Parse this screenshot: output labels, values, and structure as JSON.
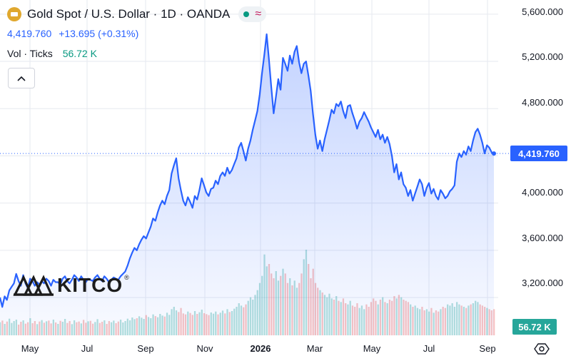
{
  "header": {
    "title": "Gold Spot / U.S. Dollar · 1D · OANDA",
    "price": "4,419.760",
    "change": "+13.695 (+0.31%)",
    "volume_label": "Vol · Ticks",
    "volume_value": "56.72 K",
    "status_icons": [
      "market-open-dot",
      "wave-icon"
    ]
  },
  "logo": {
    "text": "KITCO",
    "mark": "®"
  },
  "price_label": "4,419.760",
  "volume_axis_label": "56.72 K",
  "y_ticks": [
    "5,600.000",
    "5,200.000",
    "4,800.000",
    "4,000.000",
    "3,600.000",
    "3,200.000"
  ],
  "x_ticks": [
    "May",
    "Jul",
    "Sep",
    "Nov",
    "2026",
    "Mar",
    "May",
    "Jul",
    "Sep"
  ],
  "colors": {
    "line": "#2962ff",
    "area": "#2962ff",
    "price_label": "#2962ff",
    "volume_up": "#26a69a",
    "volume_down": "#ef5350",
    "grid": "#e6e9ef"
  },
  "chart_data": {
    "type": "area",
    "series": [
      {
        "values": [
          3200,
          3120,
          3210,
          3180,
          3260,
          3290,
          3320,
          3400,
          3340,
          3300,
          3390,
          3320,
          3280,
          3360,
          3340,
          3300,
          3330,
          3310,
          3340,
          3320,
          3360,
          3340,
          3300,
          3350,
          3330,
          3330,
          3310,
          3360,
          3380,
          3340,
          3320,
          3350,
          3390,
          3370,
          3340,
          3380,
          3350,
          3330,
          3360,
          3350,
          3340,
          3370,
          3390,
          3360,
          3340,
          3380,
          3360,
          3330,
          3350,
          3370,
          3360,
          3350,
          3380,
          3400,
          3420,
          3470,
          3530,
          3580,
          3620,
          3600,
          3650,
          3690,
          3720,
          3700,
          3750,
          3800,
          3870,
          3850,
          3920,
          3980,
          4020,
          3990,
          4060,
          4110,
          4250,
          4320,
          4380,
          4210,
          4110,
          4020,
          3980,
          4050,
          4010,
          3960,
          4060,
          4030,
          4110,
          4210,
          4150,
          4090,
          4060,
          4120,
          4130,
          4190,
          4160,
          4230,
          4260,
          4230,
          4300,
          4250,
          4280,
          4330,
          4380,
          4470,
          4510,
          4440,
          4360,
          4460,
          4530,
          4620,
          4700,
          4780,
          4920,
          5100,
          5260,
          5430,
          5210,
          4980,
          4760,
          4900,
          5050,
          4960,
          5230,
          5180,
          5120,
          5250,
          5180,
          5280,
          5330,
          5190,
          5100,
          5180,
          5200,
          5080,
          4950,
          4750,
          4580,
          4460,
          4530,
          4440,
          4540,
          4620,
          4700,
          4790,
          4760,
          4840,
          4820,
          4860,
          4780,
          4720,
          4820,
          4830,
          4760,
          4700,
          4630,
          4690,
          4720,
          4770,
          4730,
          4690,
          4640,
          4600,
          4560,
          4620,
          4540,
          4580,
          4510,
          4560,
          4500,
          4400,
          4260,
          4330,
          4200,
          4260,
          4160,
          4130,
          4060,
          4110,
          4020,
          4080,
          4140,
          4200,
          4160,
          4060,
          4130,
          4170,
          4080,
          4120,
          4060,
          4030,
          4110,
          4080,
          4040,
          4060,
          4100,
          4120,
          4150,
          4350,
          4420,
          4390,
          4440,
          4410,
          4480,
          4440,
          4530,
          4600,
          4630,
          4580,
          4510,
          4420,
          4490,
          4470,
          4430,
          4419.76
        ]
      }
    ],
    "volume": [
      0.55,
      0.62,
      0.48,
      0.58,
      0.7,
      0.52,
      0.6,
      0.66,
      0.45,
      0.57,
      0.63,
      0.49,
      0.55,
      0.72,
      0.51,
      0.6,
      0.47,
      0.58,
      0.64,
      0.53,
      0.59,
      0.62,
      0.5,
      0.66,
      0.54,
      0.48,
      0.61,
      0.57,
      0.69,
      0.52,
      0.6,
      0.47,
      0.63,
      0.55,
      0.58,
      0.5,
      0.65,
      0.53,
      0.59,
      0.61,
      0.49,
      0.56,
      0.68,
      0.52,
      0.57,
      0.63,
      0.48,
      0.6,
      0.55,
      0.62,
      0.51,
      0.58,
      0.66,
      0.54,
      0.6,
      0.7,
      0.63,
      0.75,
      0.68,
      0.72,
      0.8,
      0.74,
      0.69,
      0.85,
      0.77,
      0.72,
      0.88,
      0.81,
      0.76,
      0.9,
      0.83,
      0.79,
      0.95,
      0.86,
      1.1,
      1.2,
      1.05,
      0.98,
      1.15,
      0.92,
      0.88,
      1.0,
      0.94,
      0.86,
      1.02,
      0.9,
      0.97,
      1.08,
      0.93,
      0.89,
      0.85,
      0.96,
      0.91,
      1.0,
      0.88,
      0.95,
      1.04,
      0.92,
      1.1,
      0.98,
      1.02,
      1.12,
      1.2,
      1.35,
      1.25,
      1.18,
      1.3,
      1.45,
      1.6,
      1.5,
      1.7,
      1.9,
      2.2,
      2.5,
      3.4,
      2.9,
      3.0,
      2.6,
      2.4,
      2.7,
      2.3,
      2.5,
      2.8,
      2.6,
      2.2,
      2.4,
      2.1,
      2.3,
      2.0,
      2.2,
      2.6,
      3.2,
      3.6,
      3.0,
      2.4,
      2.8,
      2.2,
      2.0,
      1.9,
      1.8,
      1.7,
      1.6,
      1.75,
      1.55,
      1.5,
      1.65,
      1.45,
      1.4,
      1.55,
      1.35,
      1.3,
      1.45,
      1.25,
      1.2,
      1.35,
      1.15,
      1.25,
      1.1,
      1.3,
      1.2,
      1.4,
      1.55,
      1.45,
      1.3,
      1.5,
      1.6,
      1.4,
      1.35,
      1.5,
      1.45,
      1.65,
      1.55,
      1.7,
      1.6,
      1.5,
      1.45,
      1.4,
      1.3,
      1.2,
      1.25,
      1.15,
      1.1,
      1.2,
      1.05,
      1.1,
      1.0,
      1.15,
      0.95,
      1.05,
      1.0,
      1.1,
      1.2,
      1.15,
      1.3,
      1.25,
      1.35,
      1.2,
      1.4,
      1.3,
      1.25,
      1.2,
      1.15,
      1.25,
      1.3,
      1.35,
      1.45,
      1.4,
      1.3,
      1.25,
      1.2,
      1.15,
      1.1,
      1.05,
      1.1
    ],
    "ylim": [
      2880,
      5720
    ],
    "grid": true,
    "legend": "top-left"
  }
}
